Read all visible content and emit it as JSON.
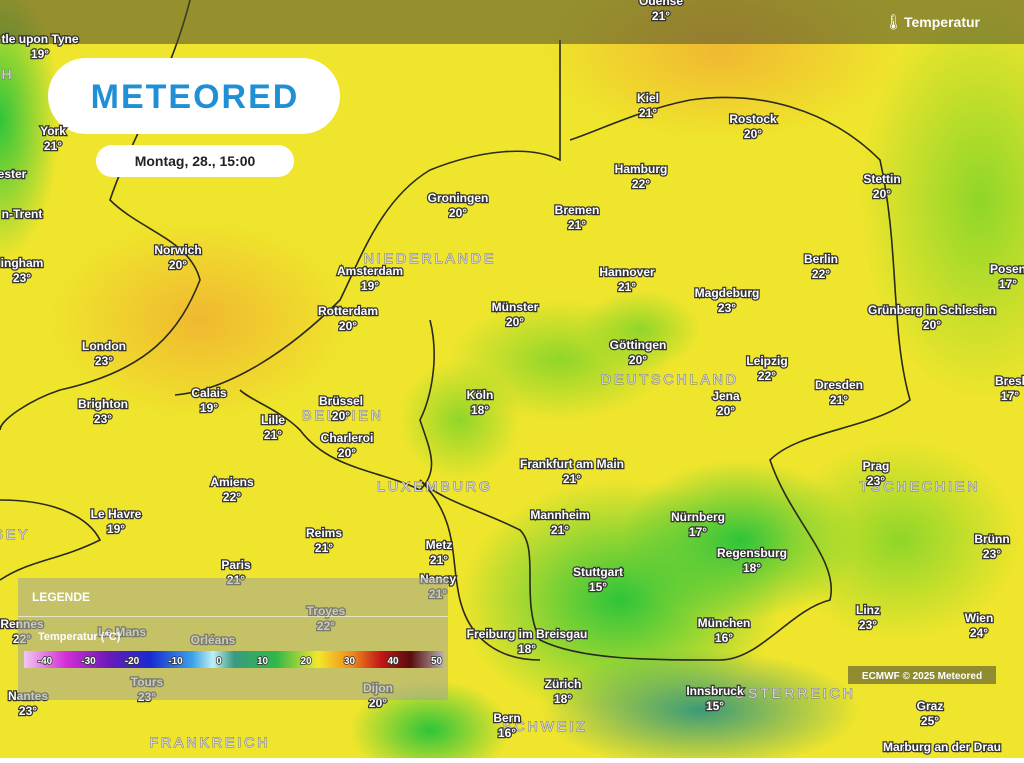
{
  "header": {
    "layer": "Temperatur",
    "logo": "METEORED",
    "datetime": "Montag, 28., 15:00"
  },
  "countries": [
    "NIEDERLANDE",
    "DEUTSCHLAND",
    "BELGIEN",
    "LUXEMBURG",
    "TSCHECHIEN",
    "SCHWEIZ",
    "ÖSTERREICH",
    "FRANKREICH",
    "SEY",
    "H"
  ],
  "cities": [
    {
      "name": "tle upon Tyne",
      "temp": "19°"
    },
    {
      "name": "York",
      "temp": "21°"
    },
    {
      "name": "ester"
    },
    {
      "name": "n-Trent"
    },
    {
      "name": "ingham",
      "temp": "23°"
    },
    {
      "name": "Norwich",
      "temp": "20°"
    },
    {
      "name": "London",
      "temp": "23°"
    },
    {
      "name": "Brighton",
      "temp": "23°"
    },
    {
      "name": "Calais",
      "temp": "19°"
    },
    {
      "name": "Lille",
      "temp": "21°"
    },
    {
      "name": "Amsterdam",
      "temp": "19°"
    },
    {
      "name": "Rotterdam",
      "temp": "20°"
    },
    {
      "name": "Groningen",
      "temp": "20°"
    },
    {
      "name": "Brüssel",
      "temp": "20°"
    },
    {
      "name": "Charleroi",
      "temp": "20°"
    },
    {
      "name": "Amiens",
      "temp": "22°"
    },
    {
      "name": "Le Havre",
      "temp": "19°"
    },
    {
      "name": "Reims",
      "temp": "21°"
    },
    {
      "name": "Paris",
      "temp": "21°"
    },
    {
      "name": "Metz",
      "temp": "21°"
    },
    {
      "name": "Nancy",
      "temp": "21°"
    },
    {
      "name": "Troyes",
      "temp": "22°"
    },
    {
      "name": "Rennes",
      "temp": "22°"
    },
    {
      "name": "Le Mans"
    },
    {
      "name": "Orléans"
    },
    {
      "name": "Tours",
      "temp": "23°"
    },
    {
      "name": "Nantes",
      "temp": "23°"
    },
    {
      "name": "Dijon",
      "temp": "20°"
    },
    {
      "name": "Odense",
      "temp": "21°"
    },
    {
      "name": "Kiel",
      "temp": "21°"
    },
    {
      "name": "Rostock",
      "temp": "20°"
    },
    {
      "name": "Hamburg",
      "temp": "22°"
    },
    {
      "name": "Stettin",
      "temp": "20°"
    },
    {
      "name": "Bremen",
      "temp": "21°"
    },
    {
      "name": "Hannover",
      "temp": "21°"
    },
    {
      "name": "Berlin",
      "temp": "22°"
    },
    {
      "name": "Posen",
      "temp": "17°"
    },
    {
      "name": "Münster",
      "temp": "20°"
    },
    {
      "name": "Magdeburg",
      "temp": "23°"
    },
    {
      "name": "Grünberg in Schlesien",
      "temp": "20°"
    },
    {
      "name": "Göttingen",
      "temp": "20°"
    },
    {
      "name": "Leipzig",
      "temp": "22°"
    },
    {
      "name": "Köln",
      "temp": "18°"
    },
    {
      "name": "Jena",
      "temp": "20°"
    },
    {
      "name": "Dresden",
      "temp": "21°"
    },
    {
      "name": "Bresl",
      "temp": "17°"
    },
    {
      "name": "Frankfurt am Main",
      "temp": "21°"
    },
    {
      "name": "Prag",
      "temp": "23°"
    },
    {
      "name": "Mannheim",
      "temp": "21°"
    },
    {
      "name": "Nürnberg",
      "temp": "17°"
    },
    {
      "name": "Regensburg",
      "temp": "18°"
    },
    {
      "name": "Brünn",
      "temp": "23°"
    },
    {
      "name": "Stuttgart",
      "temp": "15°"
    },
    {
      "name": "Linz",
      "temp": "23°"
    },
    {
      "name": "Wien",
      "temp": "24°"
    },
    {
      "name": "München",
      "temp": "16°"
    },
    {
      "name": "Freiburg im Breisgau",
      "temp": "18°"
    },
    {
      "name": "Zürich",
      "temp": "18°"
    },
    {
      "name": "Innsbruck",
      "temp": "15°"
    },
    {
      "name": "Bern",
      "temp": "16°"
    },
    {
      "name": "Graz",
      "temp": "25°"
    },
    {
      "name": "Marburg an der Drau"
    }
  ],
  "legend": {
    "title": "LEGENDE",
    "label": "Temperatur (°C)",
    "scale": [
      -40,
      -30,
      -20,
      -10,
      0,
      10,
      20,
      30,
      40,
      50
    ]
  },
  "credit": "ECMWF © 2025 Meteored"
}
